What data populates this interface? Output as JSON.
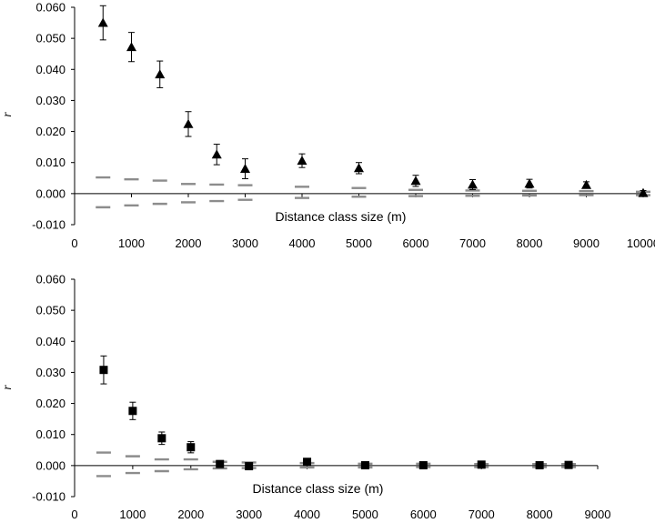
{
  "chart_data": [
    {
      "type": "scatter",
      "title": "",
      "xlabel": "Distance class size (m)",
      "ylabel": "r",
      "xlim": [
        0,
        10000
      ],
      "ylim": [
        -0.01,
        0.06
      ],
      "xticks": [
        "0",
        "1000",
        "2000",
        "3000",
        "4000",
        "5000",
        "6000",
        "7000",
        "8000",
        "9000",
        "10000"
      ],
      "yticks": [
        "0.060",
        "0.050",
        "0.040",
        "0.030",
        "0.020",
        "0.010",
        "0.000",
        "-0.010"
      ],
      "grid": false,
      "marker": "triangle",
      "colors": {
        "points": "#000000",
        "bounds": "#8c8c8c"
      },
      "points": [
        {
          "x": 500,
          "y": 0.055,
          "err": 0.0055
        },
        {
          "x": 1000,
          "y": 0.0472,
          "err": 0.0047
        },
        {
          "x": 1500,
          "y": 0.0384,
          "err": 0.0043
        },
        {
          "x": 2000,
          "y": 0.0224,
          "err": 0.004
        },
        {
          "x": 2500,
          "y": 0.0126,
          "err": 0.0033
        },
        {
          "x": 3000,
          "y": 0.008,
          "err": 0.0032
        },
        {
          "x": 4000,
          "y": 0.0106,
          "err": 0.0022
        },
        {
          "x": 5000,
          "y": 0.0082,
          "err": 0.0018
        },
        {
          "x": 6000,
          "y": 0.0041,
          "err": 0.0018
        },
        {
          "x": 7000,
          "y": 0.0029,
          "err": 0.0016
        },
        {
          "x": 8000,
          "y": 0.0032,
          "err": 0.0014
        },
        {
          "x": 9000,
          "y": 0.0028,
          "err": 0.001
        },
        {
          "x": 10000,
          "y": 0.0002,
          "err": 0.0008
        }
      ],
      "upper_bound": [
        {
          "x": 500,
          "y": 0.0052
        },
        {
          "x": 1000,
          "y": 0.0046
        },
        {
          "x": 1500,
          "y": 0.0042
        },
        {
          "x": 2000,
          "y": 0.0031
        },
        {
          "x": 2500,
          "y": 0.0029
        },
        {
          "x": 3000,
          "y": 0.0027
        },
        {
          "x": 4000,
          "y": 0.0022
        },
        {
          "x": 5000,
          "y": 0.0018
        },
        {
          "x": 6000,
          "y": 0.0012
        },
        {
          "x": 7000,
          "y": 0.001
        },
        {
          "x": 8000,
          "y": 0.0009
        },
        {
          "x": 9000,
          "y": 0.0008
        },
        {
          "x": 10000,
          "y": 0.0006
        }
      ],
      "lower_bound": [
        {
          "x": 500,
          "y": -0.0044
        },
        {
          "x": 1000,
          "y": -0.0038
        },
        {
          "x": 1500,
          "y": -0.0033
        },
        {
          "x": 2000,
          "y": -0.0028
        },
        {
          "x": 2500,
          "y": -0.0024
        },
        {
          "x": 3000,
          "y": -0.002
        },
        {
          "x": 4000,
          "y": -0.0014
        },
        {
          "x": 5000,
          "y": -0.001
        },
        {
          "x": 6000,
          "y": -0.0008
        },
        {
          "x": 7000,
          "y": -0.0007
        },
        {
          "x": 8000,
          "y": -0.0006
        },
        {
          "x": 9000,
          "y": -0.0005
        },
        {
          "x": 10000,
          "y": -0.0005
        }
      ]
    },
    {
      "type": "scatter",
      "title": "",
      "xlabel": "Distance class size (m)",
      "ylabel": "r",
      "xlim": [
        0,
        9000
      ],
      "ylim": [
        -0.01,
        0.06
      ],
      "xticks": [
        "0",
        "1000",
        "2000",
        "3000",
        "4000",
        "5000",
        "6000",
        "7000",
        "8000",
        "9000"
      ],
      "yticks": [
        "0.060",
        "0.050",
        "0.040",
        "0.030",
        "0.020",
        "0.010",
        "0.000",
        "-0.010"
      ],
      "grid": false,
      "marker": "square",
      "colors": {
        "points": "#000000",
        "bounds": "#8c8c8c"
      },
      "points": [
        {
          "x": 500,
          "y": 0.0308,
          "err": 0.0045
        },
        {
          "x": 1000,
          "y": 0.0176,
          "err": 0.0028
        },
        {
          "x": 1500,
          "y": 0.0088,
          "err": 0.002
        },
        {
          "x": 2000,
          "y": 0.0059,
          "err": 0.0018
        },
        {
          "x": 2500,
          "y": 0.0005,
          "err": 0.001
        },
        {
          "x": 3000,
          "y": -0.0002,
          "err": 0.001
        },
        {
          "x": 4000,
          "y": 0.0012,
          "err": 0.0008
        },
        {
          "x": 5000,
          "y": 0.0001,
          "err": 0.0008
        },
        {
          "x": 6000,
          "y": 0.0001,
          "err": 0.0007
        },
        {
          "x": 7000,
          "y": 0.0003,
          "err": 0.0006
        },
        {
          "x": 8000,
          "y": 0.0001,
          "err": 0.0007
        },
        {
          "x": 8500,
          "y": 0.0002,
          "err": 0.0007
        }
      ],
      "upper_bound": [
        {
          "x": 500,
          "y": 0.0042
        },
        {
          "x": 1000,
          "y": 0.003
        },
        {
          "x": 1500,
          "y": 0.002
        },
        {
          "x": 2000,
          "y": 0.002
        },
        {
          "x": 2500,
          "y": 0.0012
        },
        {
          "x": 3000,
          "y": 0.001
        },
        {
          "x": 4000,
          "y": 0.0008
        },
        {
          "x": 5000,
          "y": 0.0006
        },
        {
          "x": 6000,
          "y": 0.0006
        },
        {
          "x": 7000,
          "y": 0.0005
        },
        {
          "x": 8000,
          "y": 0.0005
        },
        {
          "x": 8500,
          "y": 0.0005
        }
      ],
      "lower_bound": [
        {
          "x": 500,
          "y": -0.0034
        },
        {
          "x": 1000,
          "y": -0.0024
        },
        {
          "x": 1500,
          "y": -0.0018
        },
        {
          "x": 2000,
          "y": -0.0012
        },
        {
          "x": 2500,
          "y": -0.0009
        },
        {
          "x": 3000,
          "y": -0.0008
        },
        {
          "x": 4000,
          "y": -0.0006
        },
        {
          "x": 5000,
          "y": -0.0006
        },
        {
          "x": 6000,
          "y": -0.0005
        },
        {
          "x": 7000,
          "y": -0.0005
        },
        {
          "x": 8000,
          "y": -0.0005
        },
        {
          "x": 8500,
          "y": -0.0005
        }
      ]
    }
  ]
}
